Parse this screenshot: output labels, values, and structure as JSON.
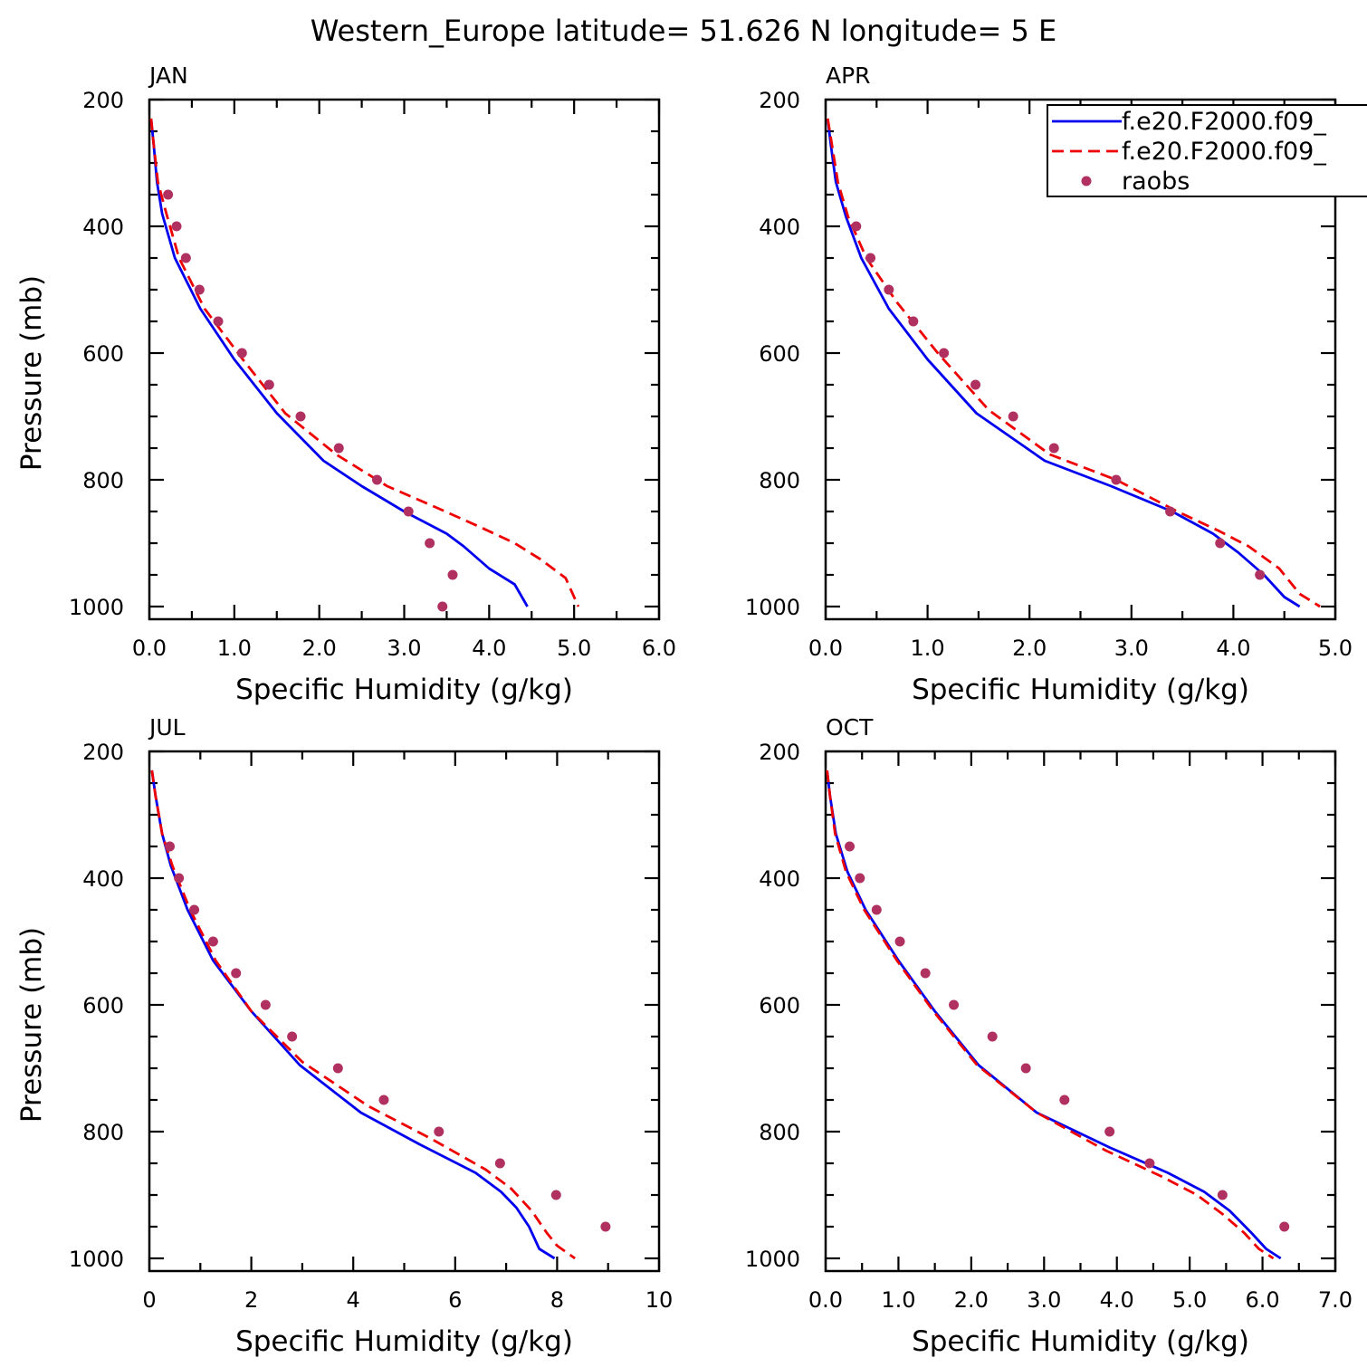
{
  "figure": {
    "title": "Western_Europe  latitude= 51.626 N longitude= 5 E"
  },
  "colors": {
    "model1": "#0000ee",
    "model2": "#ee0000",
    "obs": "#b03060",
    "axes": "#000000"
  },
  "legend": {
    "placement": "top-right of APR panel",
    "entries": [
      {
        "label": "f.e20.F2000.f09_",
        "style": "solid",
        "color": "#0000ee"
      },
      {
        "label": "f.e20.F2000.f09_",
        "style": "dashed",
        "color": "#ee0000"
      },
      {
        "label": "raobs",
        "style": "marker",
        "color": "#b03060"
      }
    ]
  },
  "chart_data": [
    {
      "type": "line",
      "panel": "JAN",
      "xlabel": "Specific Humidity (g/kg)",
      "ylabel": "Pressure (mb)",
      "xlim": [
        0,
        6
      ],
      "xticks": [
        0,
        1,
        2,
        3,
        4,
        5,
        6
      ],
      "xticklabels": [
        "0.0",
        "1.0",
        "2.0",
        "3.0",
        "4.0",
        "5.0",
        "6.0"
      ],
      "xminor": 0.5,
      "ylim": [
        1000,
        200
      ],
      "yrange": [
        1020,
        200
      ],
      "yticks": [
        200,
        400,
        600,
        800,
        1000
      ],
      "yminor": 50,
      "series": [
        {
          "name": "f.e20.F2000.f09_",
          "style": "solid",
          "color": "#0000ee",
          "points": [
            [
              0.02,
              230
            ],
            [
              0.05,
              270
            ],
            [
              0.09,
              330
            ],
            [
              0.15,
              380
            ],
            [
              0.3,
              450
            ],
            [
              0.6,
              530
            ],
            [
              1.0,
              610
            ],
            [
              1.5,
              695
            ],
            [
              2.05,
              770
            ],
            [
              2.5,
              810
            ],
            [
              3.0,
              850
            ],
            [
              3.5,
              885
            ],
            [
              3.7,
              905
            ],
            [
              4.0,
              940
            ],
            [
              4.3,
              965
            ],
            [
              4.45,
              1000
            ]
          ]
        },
        {
          "name": "f.e20.F2000.f09_",
          "style": "dashed",
          "color": "#ee0000",
          "points": [
            [
              0.02,
              230
            ],
            [
              0.05,
              270
            ],
            [
              0.1,
              330
            ],
            [
              0.2,
              380
            ],
            [
              0.35,
              450
            ],
            [
              0.65,
              530
            ],
            [
              1.1,
              610
            ],
            [
              1.6,
              695
            ],
            [
              2.2,
              760
            ],
            [
              2.8,
              810
            ],
            [
              3.4,
              845
            ],
            [
              3.9,
              875
            ],
            [
              4.3,
              900
            ],
            [
              4.6,
              925
            ],
            [
              4.9,
              955
            ],
            [
              5.05,
              1000
            ]
          ]
        },
        {
          "name": "raobs",
          "style": "marker",
          "color": "#b03060",
          "points": [
            [
              0.22,
              350
            ],
            [
              0.32,
              400
            ],
            [
              0.43,
              450
            ],
            [
              0.59,
              500
            ],
            [
              0.81,
              550
            ],
            [
              1.09,
              600
            ],
            [
              1.41,
              650
            ],
            [
              1.78,
              700
            ],
            [
              2.23,
              750
            ],
            [
              2.68,
              800
            ],
            [
              3.05,
              850
            ],
            [
              3.3,
              900
            ],
            [
              3.57,
              950
            ],
            [
              3.45,
              1000
            ]
          ]
        }
      ]
    },
    {
      "type": "line",
      "panel": "APR",
      "xlabel": "Specific Humidity (g/kg)",
      "ylabel": "",
      "xlim": [
        0,
        5
      ],
      "xticks": [
        0,
        1,
        2,
        3,
        4,
        5
      ],
      "xticklabels": [
        "0.0",
        "1.0",
        "2.0",
        "3.0",
        "4.0",
        "5.0"
      ],
      "xminor": 0.5,
      "ylim": [
        1000,
        200
      ],
      "yrange": [
        1020,
        200
      ],
      "yticks": [
        200,
        400,
        600,
        800,
        1000
      ],
      "yminor": 50,
      "series": [
        {
          "name": "f.e20.F2000.f09_",
          "style": "solid",
          "color": "#0000ee",
          "points": [
            [
              0.02,
              230
            ],
            [
              0.05,
              270
            ],
            [
              0.1,
              330
            ],
            [
              0.2,
              385
            ],
            [
              0.35,
              450
            ],
            [
              0.62,
              530
            ],
            [
              1.0,
              610
            ],
            [
              1.48,
              695
            ],
            [
              2.15,
              770
            ],
            [
              2.8,
              810
            ],
            [
              3.4,
              850
            ],
            [
              3.8,
              885
            ],
            [
              4.05,
              915
            ],
            [
              4.3,
              950
            ],
            [
              4.5,
              985
            ],
            [
              4.65,
              1000
            ]
          ]
        },
        {
          "name": "f.e20.F2000.f09_",
          "style": "dashed",
          "color": "#ee0000",
          "points": [
            [
              0.02,
              230
            ],
            [
              0.06,
              270
            ],
            [
              0.12,
              330
            ],
            [
              0.22,
              385
            ],
            [
              0.4,
              450
            ],
            [
              0.7,
              520
            ],
            [
              1.1,
              600
            ],
            [
              1.6,
              690
            ],
            [
              2.2,
              760
            ],
            [
              2.85,
              800
            ],
            [
              3.45,
              850
            ],
            [
              3.85,
              880
            ],
            [
              4.15,
              905
            ],
            [
              4.45,
              940
            ],
            [
              4.65,
              980
            ],
            [
              4.85,
              1000
            ]
          ]
        },
        {
          "name": "raobs",
          "style": "marker",
          "color": "#b03060",
          "points": [
            [
              0.3,
              400
            ],
            [
              0.44,
              450
            ],
            [
              0.62,
              500
            ],
            [
              0.86,
              550
            ],
            [
              1.16,
              600
            ],
            [
              1.47,
              650
            ],
            [
              1.84,
              700
            ],
            [
              2.24,
              750
            ],
            [
              2.85,
              800
            ],
            [
              3.38,
              850
            ],
            [
              3.87,
              900
            ],
            [
              4.26,
              950
            ]
          ]
        }
      ]
    },
    {
      "type": "line",
      "panel": "JUL",
      "xlabel": "Specific Humidity (g/kg)",
      "ylabel": "Pressure (mb)",
      "xlim": [
        0,
        10
      ],
      "xticks": [
        0,
        2,
        4,
        6,
        8,
        10
      ],
      "xticklabels": [
        "0",
        "2",
        "4",
        "6",
        "8",
        "10"
      ],
      "xminor": 1,
      "ylim": [
        1000,
        200
      ],
      "yrange": [
        1020,
        200
      ],
      "yticks": [
        200,
        400,
        600,
        800,
        1000
      ],
      "yminor": 50,
      "series": [
        {
          "name": "f.e20.F2000.f09_",
          "style": "solid",
          "color": "#0000ee",
          "points": [
            [
              0.05,
              230
            ],
            [
              0.12,
              270
            ],
            [
              0.25,
              330
            ],
            [
              0.42,
              380
            ],
            [
              0.75,
              450
            ],
            [
              1.25,
              530
            ],
            [
              2.0,
              610
            ],
            [
              2.95,
              695
            ],
            [
              4.15,
              770
            ],
            [
              5.3,
              820
            ],
            [
              6.4,
              865
            ],
            [
              6.9,
              895
            ],
            [
              7.2,
              920
            ],
            [
              7.45,
              950
            ],
            [
              7.65,
              985
            ],
            [
              7.95,
              1000
            ]
          ]
        },
        {
          "name": "f.e20.F2000.f09_",
          "style": "dashed",
          "color": "#ee0000",
          "points": [
            [
              0.05,
              230
            ],
            [
              0.12,
              270
            ],
            [
              0.25,
              330
            ],
            [
              0.45,
              380
            ],
            [
              0.8,
              450
            ],
            [
              1.3,
              530
            ],
            [
              2.0,
              610
            ],
            [
              3.0,
              690
            ],
            [
              4.3,
              760
            ],
            [
              5.5,
              810
            ],
            [
              6.6,
              860
            ],
            [
              7.1,
              890
            ],
            [
              7.5,
              925
            ],
            [
              7.8,
              960
            ],
            [
              8.0,
              980
            ],
            [
              8.35,
              1000
            ]
          ]
        },
        {
          "name": "raobs",
          "style": "marker",
          "color": "#b03060",
          "points": [
            [
              0.4,
              350
            ],
            [
              0.58,
              400
            ],
            [
              0.88,
              450
            ],
            [
              1.25,
              500
            ],
            [
              1.7,
              550
            ],
            [
              2.28,
              600
            ],
            [
              2.8,
              650
            ],
            [
              3.7,
              700
            ],
            [
              4.6,
              750
            ],
            [
              5.68,
              800
            ],
            [
              6.88,
              850
            ],
            [
              7.98,
              900
            ],
            [
              8.95,
              950
            ]
          ]
        }
      ]
    },
    {
      "type": "line",
      "panel": "OCT",
      "xlabel": "Specific Humidity (g/kg)",
      "ylabel": "",
      "xlim": [
        0,
        7
      ],
      "xticks": [
        0,
        1,
        2,
        3,
        4,
        5,
        6,
        7
      ],
      "xticklabels": [
        "0.0",
        "1.0",
        "2.0",
        "3.0",
        "4.0",
        "5.0",
        "6.0",
        "7.0"
      ],
      "xminor": 0.5,
      "ylim": [
        1000,
        200
      ],
      "yrange": [
        1020,
        200
      ],
      "yticks": [
        200,
        400,
        600,
        800,
        1000
      ],
      "yminor": 50,
      "series": [
        {
          "name": "f.e20.F2000.f09_",
          "style": "solid",
          "color": "#0000ee",
          "points": [
            [
              0.02,
              230
            ],
            [
              0.06,
              270
            ],
            [
              0.14,
              330
            ],
            [
              0.3,
              390
            ],
            [
              0.55,
              450
            ],
            [
              1.0,
              530
            ],
            [
              1.5,
              610
            ],
            [
              2.1,
              695
            ],
            [
              2.9,
              770
            ],
            [
              3.9,
              825
            ],
            [
              4.7,
              865
            ],
            [
              5.2,
              895
            ],
            [
              5.55,
              925
            ],
            [
              5.85,
              960
            ],
            [
              6.05,
              985
            ],
            [
              6.25,
              1000
            ]
          ]
        },
        {
          "name": "f.e20.F2000.f09_",
          "style": "dashed",
          "color": "#ee0000",
          "points": [
            [
              0.02,
              230
            ],
            [
              0.06,
              270
            ],
            [
              0.13,
              330
            ],
            [
              0.28,
              390
            ],
            [
              0.53,
              450
            ],
            [
              0.98,
              530
            ],
            [
              1.48,
              610
            ],
            [
              2.08,
              695
            ],
            [
              2.9,
              770
            ],
            [
              3.85,
              830
            ],
            [
              4.6,
              870
            ],
            [
              5.1,
              900
            ],
            [
              5.45,
              930
            ],
            [
              5.75,
              960
            ],
            [
              5.95,
              985
            ],
            [
              6.15,
              1000
            ]
          ]
        },
        {
          "name": "raobs",
          "style": "marker",
          "color": "#b03060",
          "points": [
            [
              0.33,
              350
            ],
            [
              0.47,
              400
            ],
            [
              0.7,
              450
            ],
            [
              1.02,
              500
            ],
            [
              1.37,
              550
            ],
            [
              1.76,
              600
            ],
            [
              2.29,
              650
            ],
            [
              2.75,
              700
            ],
            [
              3.28,
              750
            ],
            [
              3.9,
              800
            ],
            [
              4.45,
              850
            ],
            [
              5.45,
              900
            ],
            [
              6.3,
              950
            ]
          ]
        }
      ]
    }
  ]
}
